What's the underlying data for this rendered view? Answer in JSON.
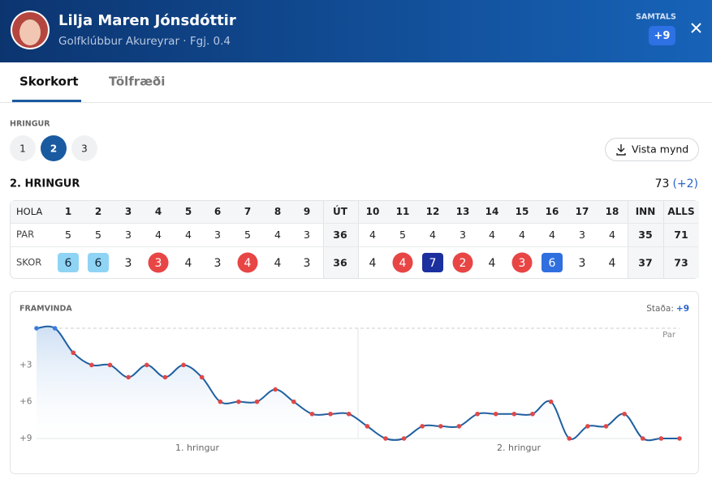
{
  "header": {
    "name": "Lilja Maren Jónsdóttir",
    "subtitle": "Golfklúbbur Akureyrar · Fgj. 0.4",
    "total_label": "SAMTALS",
    "total": "+9"
  },
  "tabs": [
    "Skorkort",
    "Tölfræði"
  ],
  "round_picker": {
    "label": "HRINGUR",
    "rounds": [
      1,
      2,
      3
    ],
    "selected": 2
  },
  "save_button": "Vista mynd",
  "scorecard": {
    "title": "2. HRINGUR",
    "total": 73,
    "to_par": "(+2)",
    "columns": [
      "HOLA",
      "1",
      "2",
      "3",
      "4",
      "5",
      "6",
      "7",
      "8",
      "9",
      "ÚT",
      "10",
      "11",
      "12",
      "13",
      "14",
      "15",
      "16",
      "17",
      "18",
      "INN",
      "ALLS"
    ],
    "rows": [
      {
        "label": "PAR",
        "values": [
          5,
          5,
          3,
          4,
          4,
          3,
          5,
          4,
          3,
          36,
          4,
          5,
          4,
          3,
          4,
          4,
          4,
          3,
          4,
          35,
          71
        ]
      },
      {
        "label": "SKOR",
        "values": [
          6,
          6,
          3,
          3,
          4,
          3,
          4,
          4,
          3,
          36,
          4,
          4,
          7,
          2,
          4,
          3,
          6,
          3,
          4,
          37,
          73
        ]
      }
    ]
  },
  "progress": {
    "title": "FRAMVINDA",
    "status_label": "Staða:",
    "status_value": "+9",
    "par_label": "Par",
    "ylim": [
      0,
      9
    ],
    "yticks": [
      {
        "value": 3,
        "label": "+3"
      },
      {
        "value": 6,
        "label": "+6"
      },
      {
        "value": 9,
        "label": "+9"
      }
    ],
    "x_labels": [
      "1. hringur",
      "2. hringur"
    ],
    "values": [
      0,
      0,
      2,
      3,
      3,
      4,
      3,
      4,
      3,
      4,
      6,
      6,
      6,
      5,
      6,
      7,
      7,
      7,
      8,
      9,
      9,
      8,
      8,
      8,
      7,
      7,
      7,
      7,
      6,
      9,
      8,
      8,
      7,
      9,
      9,
      9
    ]
  }
}
